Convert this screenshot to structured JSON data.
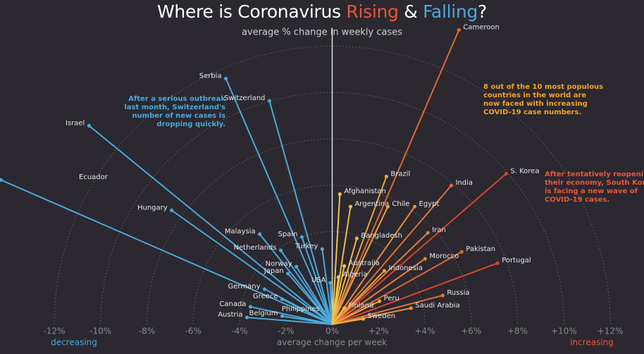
{
  "chart_data": {
    "type": "radial",
    "title": {
      "start": "Where is Coronavirus",
      "rising": "Rising",
      "and": "&",
      "falling": "Falling",
      "end": "?"
    },
    "subtitle": "average % change in weekly cases",
    "x_label": "average change per week",
    "left_label": "decreasing",
    "right_label": "increasing",
    "categories": [
      "Cameroon",
      "Serbia",
      "Switzerland",
      "Israel",
      "Ecuador",
      "Hungary",
      "Malaysia",
      "Spain",
      "Turkey",
      "Netherlands",
      "Norway",
      "Japan",
      "Germany",
      "USA",
      "Greece",
      "Canada",
      "Philippines",
      "Belgium",
      "Austria",
      "Brazil",
      "India",
      "S. Korea",
      "Afghanistan",
      "Argentina",
      "Chile",
      "Egypt",
      "Iran",
      "Bangladesh",
      "Pakistan",
      "Morocco",
      "Portugal",
      "Australia",
      "Indonesia",
      "Algeria",
      "Russia",
      "Peru",
      "Saudi Arabia",
      "Finland",
      "Sweden"
    ],
    "x": [
      5.47,
      -4.59,
      -2.71,
      -10.5,
      -14.3,
      -6.93,
      -3.13,
      -1.31,
      -0.43,
      -2.22,
      -1.55,
      -1.91,
      -2.92,
      -0.09,
      -2.16,
      -3.53,
      -0.36,
      -2.16,
      -3.68,
      2.34,
      5.14,
      7.51,
      0.33,
      0.79,
      2.4,
      3.56,
      4.13,
      1.06,
      5.59,
      4.01,
      7.14,
      0.52,
      2.25,
      0.27,
      4.77,
      2.04,
      3.4,
      0.52,
      1.34
    ],
    "y": [
      12.7,
      10.6,
      9.64,
      8.57,
      6.23,
      4.92,
      3.89,
      3.77,
      3.25,
      3.19,
      2.49,
      2.19,
      1.52,
      1.79,
      1.09,
      0.76,
      0.55,
      0.36,
      0.3,
      6.38,
      5.99,
      6.5,
      5.62,
      5.08,
      5.08,
      5.08,
      3.95,
      3.71,
      3.13,
      2.83,
      2.64,
      2.52,
      2.31,
      2.04,
      1.25,
      1.0,
      0.7,
      0.7,
      0.24
    ],
    "colors": {
      "decreasing": "#4aa9d8",
      "increasing_low": "#f7c948",
      "increasing_high": "#d8432b"
    },
    "xlim": [
      -12,
      12
    ],
    "xticks": [
      {
        "value": -12,
        "label": "-12%"
      },
      {
        "value": -10,
        "label": "-10%"
      },
      {
        "value": -8,
        "label": "-8%"
      },
      {
        "value": -6,
        "label": "-6%"
      },
      {
        "value": -4,
        "label": "-4%"
      },
      {
        "value": -2,
        "label": "-2%"
      },
      {
        "value": 0,
        "label": "0%"
      },
      {
        "value": 2,
        "label": "+2%"
      },
      {
        "value": 4,
        "label": "+4%"
      },
      {
        "value": 6,
        "label": "+6%"
      },
      {
        "value": 8,
        "label": "+8%"
      },
      {
        "value": 10,
        "label": "+10%"
      },
      {
        "value": 12,
        "label": "+12%"
      }
    ],
    "annotations": [
      {
        "lines": [
          "After a serious outbreak",
          "last month, Switzerland's",
          "number of new cases is",
          "dropping quickly."
        ]
      },
      {
        "lines": [
          "8 out of the 10 most populous",
          "countries in the world are",
          "now faced with increasing",
          "COVID-19 case numbers."
        ]
      },
      {
        "lines": [
          "After tentatively reopening",
          "their economy, South Korea",
          "is facing a new wave of",
          "COVID-19 cases."
        ]
      }
    ]
  }
}
